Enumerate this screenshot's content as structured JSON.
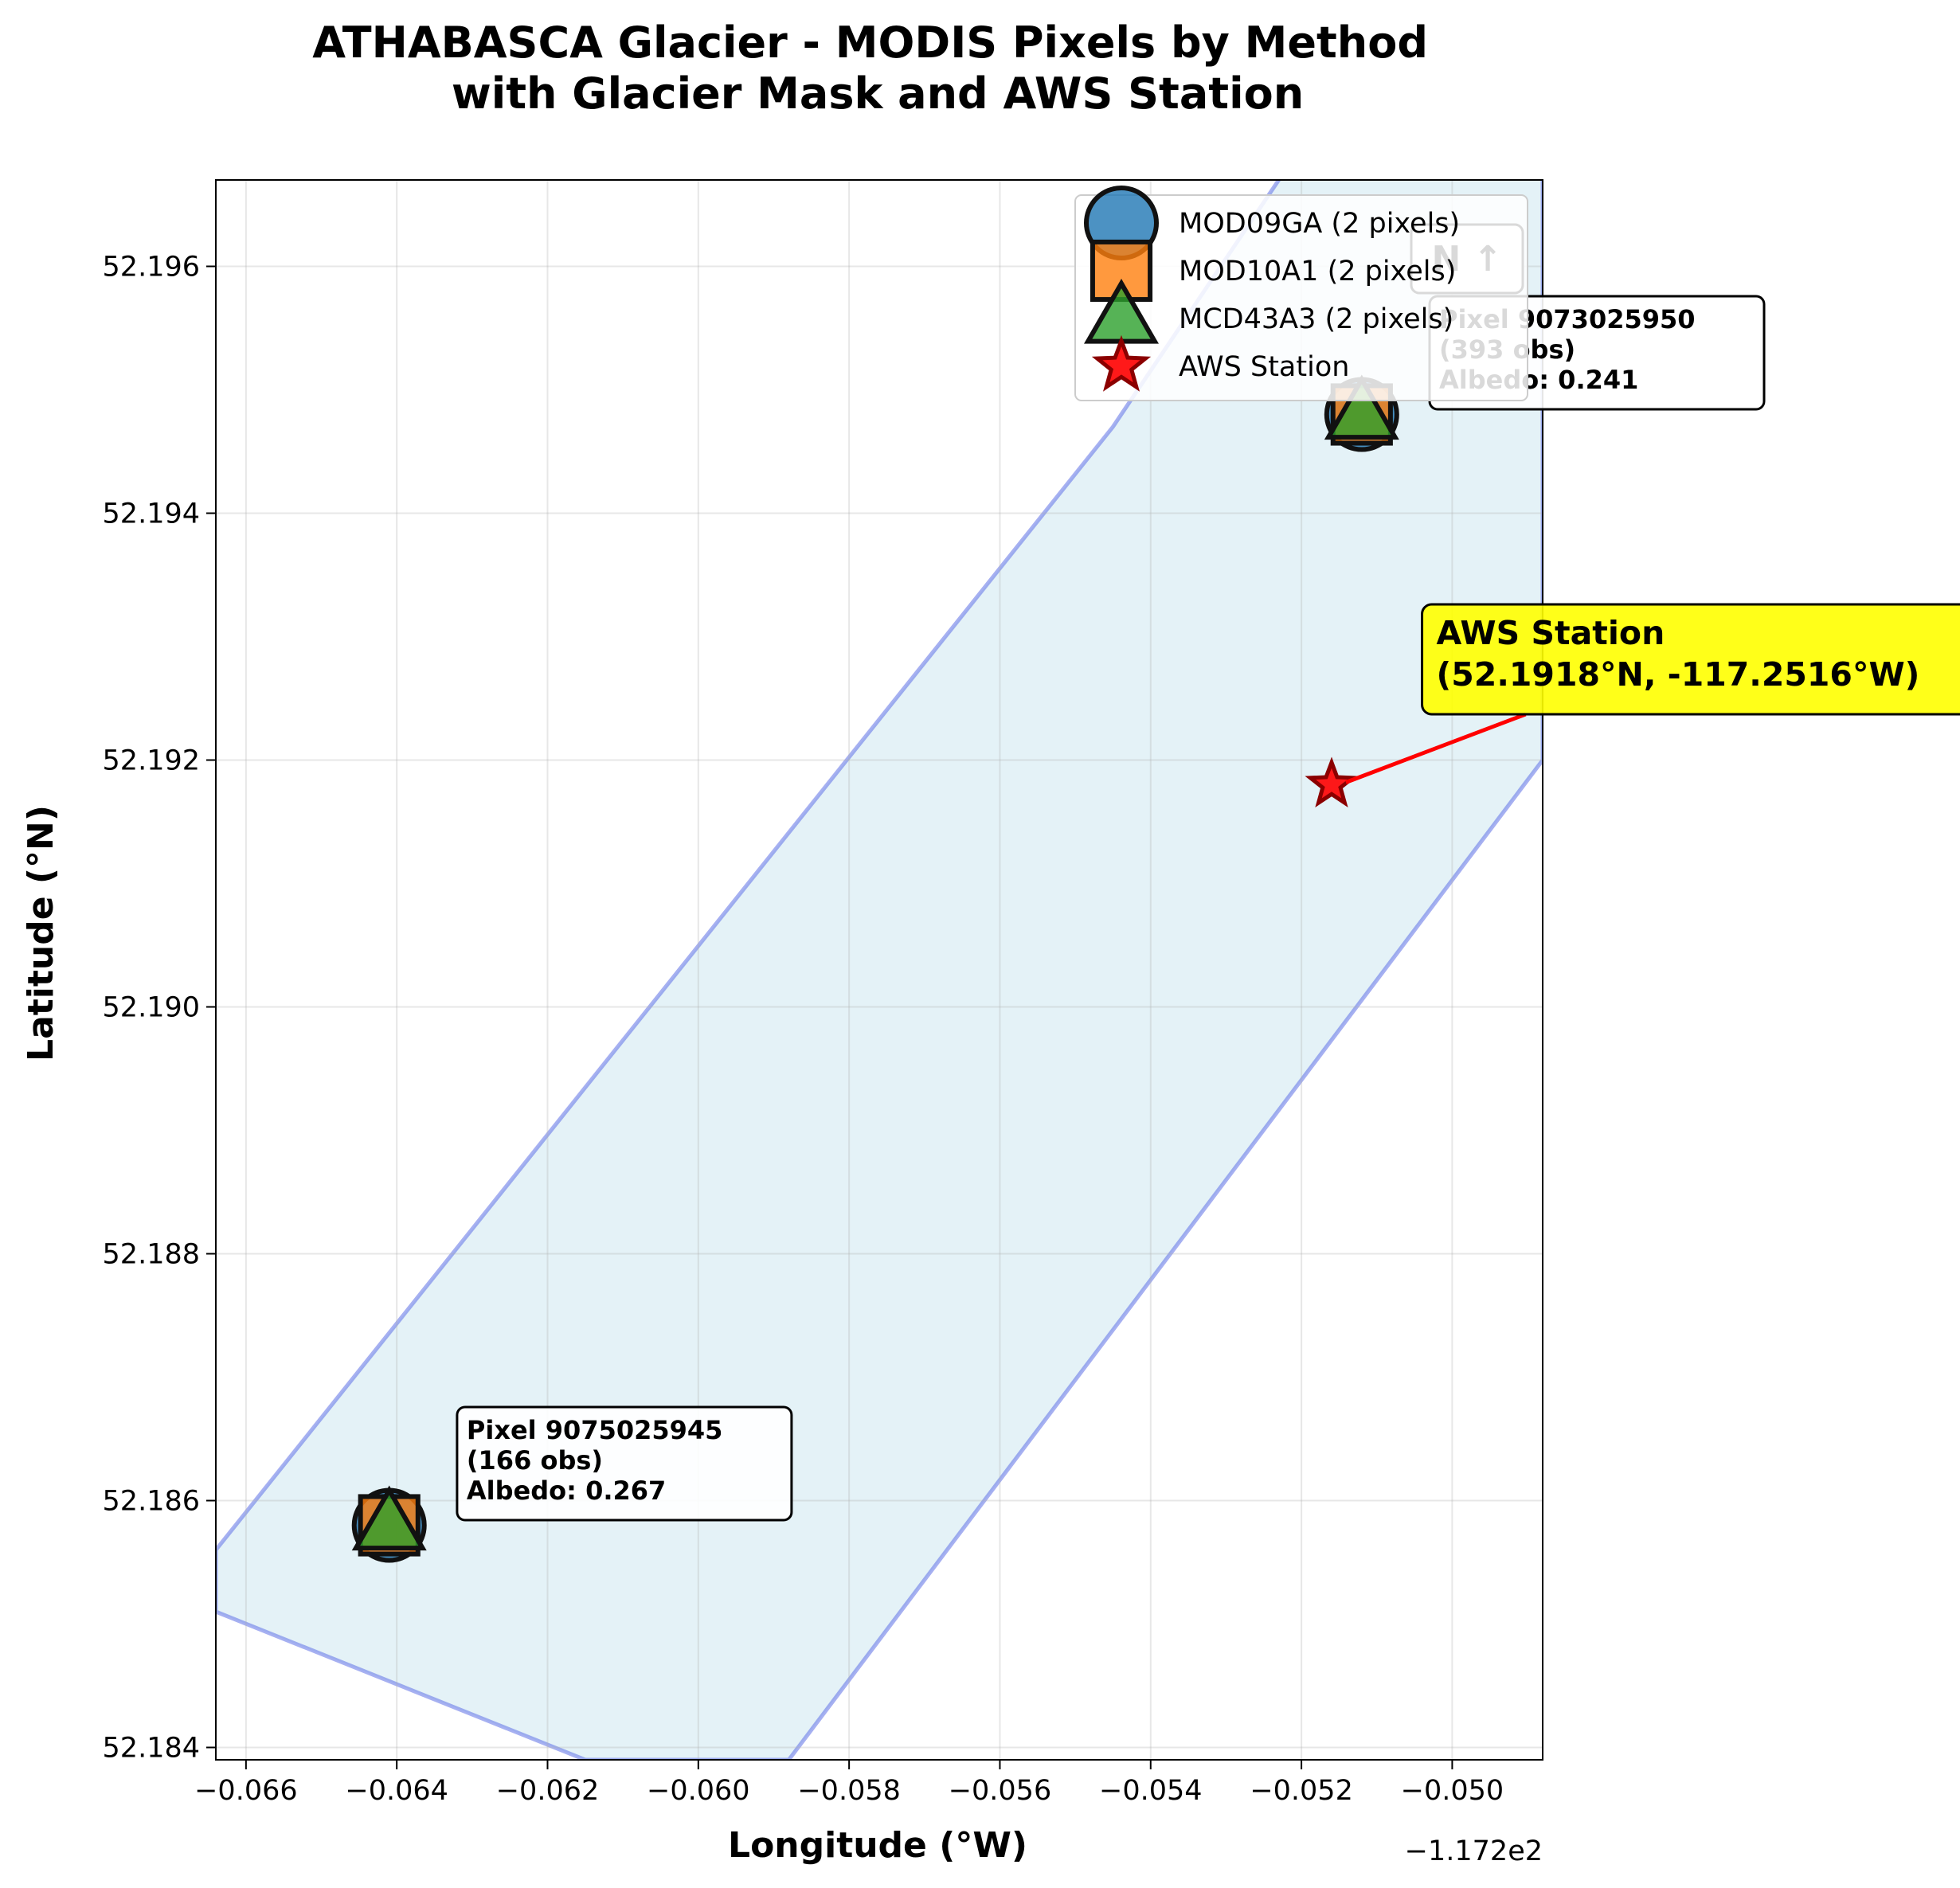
{
  "chart_data": {
    "type": "scatter",
    "title": "ATHABASCA Glacier - MODIS Pixels by Method\nwith Glacier Mask and AWS Station",
    "xlabel": "Longitude (°W)",
    "ylabel": "Latitude (°N)",
    "x_offset_label": "−1.172e2",
    "xlim": [
      -0.0664,
      -0.0488
    ],
    "ylim": [
      52.1839,
      52.1967
    ],
    "xticks": [
      -0.066,
      -0.064,
      -0.062,
      -0.06,
      -0.058,
      -0.056,
      -0.054,
      -0.052,
      -0.05
    ],
    "xtick_labels": [
      "−0.066",
      "−0.064",
      "−0.062",
      "−0.060",
      "−0.058",
      "−0.056",
      "−0.054",
      "−0.052",
      "−0.050"
    ],
    "yticks": [
      52.184,
      52.186,
      52.188,
      52.19,
      52.192,
      52.194,
      52.196
    ],
    "ytick_labels": [
      "52.184",
      "52.186",
      "52.188",
      "52.190",
      "52.192",
      "52.194",
      "52.196"
    ],
    "grid": true,
    "legend_position": "top-right",
    "glacier_mask": {
      "fill": "#add8e6",
      "edge": "#6b7be8",
      "polygon": [
        [
          -0.0664,
          52.1856
        ],
        [
          -0.0545,
          52.1947
        ],
        [
          -0.0512,
          52.1977
        ],
        [
          -0.0488,
          52.1977
        ],
        [
          -0.0488,
          52.192
        ],
        [
          -0.0588,
          52.1839
        ],
        [
          -0.0615,
          52.1839
        ],
        [
          -0.0664,
          52.1851
        ]
      ]
    },
    "series": [
      {
        "name": "MOD09GA (2 pixels)",
        "marker": "circle",
        "color": "#1f77b4",
        "points": [
          [
            -0.0641,
            52.1858
          ],
          [
            -0.0512,
            52.1948
          ]
        ]
      },
      {
        "name": "MOD10A1 (2 pixels)",
        "marker": "square",
        "color": "#ff7f0e",
        "points": [
          [
            -0.0641,
            52.1858
          ],
          [
            -0.0512,
            52.1948
          ]
        ]
      },
      {
        "name": "MCD43A3 (2 pixels)",
        "marker": "triangle",
        "color": "#2ca02c",
        "points": [
          [
            -0.0641,
            52.1858
          ],
          [
            -0.0512,
            52.1948
          ]
        ]
      },
      {
        "name": "AWS Station",
        "marker": "star",
        "color": "#ff0000",
        "points": [
          [
            -0.0516,
            52.1918
          ]
        ]
      }
    ],
    "annotations": [
      {
        "lines": [
          "Pixel 9075025945",
          "(166 obs)",
          "Albedo: 0.267"
        ],
        "point": [
          -0.0641,
          52.1858
        ],
        "x": -0.0632,
        "y": 52.1863
      },
      {
        "lines": [
          "Pixel 9073025950",
          "(393 obs)",
          "Albedo: 0.241"
        ],
        "point": [
          -0.0512,
          52.1948
        ],
        "x": -0.0503,
        "y": 52.1953
      }
    ],
    "aws_label": {
      "lines": [
        "AWS Station",
        "(52.1918°N, -117.2516°W)"
      ],
      "point": [
        -0.0516,
        52.1918
      ],
      "x": -0.0504,
      "y": 52.1925
    },
    "north_label": "N ↑"
  }
}
